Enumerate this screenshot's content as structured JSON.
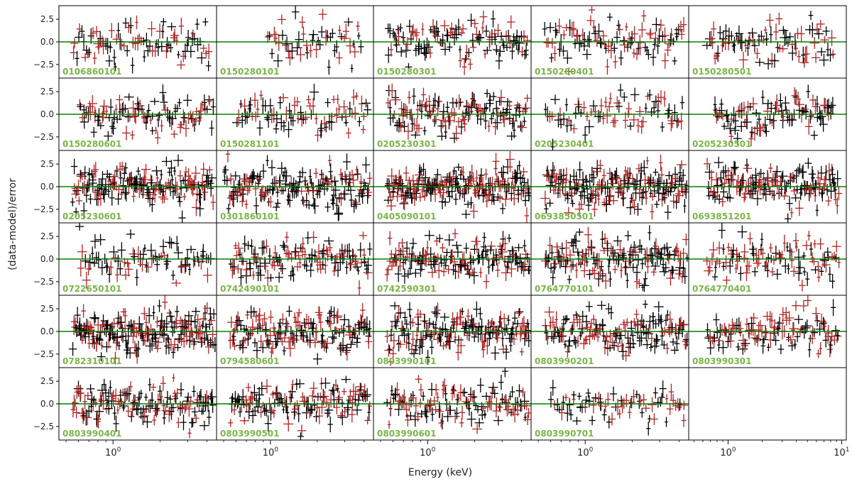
{
  "chart_data": {
    "type": "scatter",
    "layout": "grid of residual panels, 6 rows x 5 columns",
    "xlabel": "Energy (keV)",
    "ylabel": "(data-model)/error",
    "xscale": "log",
    "ylim": [
      -4,
      4
    ],
    "yticks": [
      2.5,
      0.0,
      -2.5
    ],
    "ytick_labels": [
      "2.5",
      "0.0",
      "−2.5"
    ],
    "xtick_labels": [
      {
        "base": "10",
        "exp": "0",
        "value": 1
      },
      {
        "base": "10",
        "exp": "1",
        "value": 10
      }
    ],
    "reference_line": {
      "y": 0,
      "color": "#008000"
    },
    "series_styles": [
      {
        "name": "instrument-1",
        "color": "#000000"
      },
      {
        "name": "instrument-2",
        "color": "#b22222"
      }
    ],
    "label_color": "#7ab648",
    "panels": [
      {
        "obs_id": "0106860101",
        "xlim": [
          0.45,
          4.6
        ],
        "xrange": [
          0.55,
          4.2
        ],
        "n": 85
      },
      {
        "obs_id": "0150280101",
        "xlim": [
          0.45,
          4.6
        ],
        "xrange": [
          0.95,
          3.9
        ],
        "n": 50
      },
      {
        "obs_id": "0150280301",
        "xlim": [
          0.45,
          4.6
        ],
        "xrange": [
          0.55,
          4.4
        ],
        "n": 110
      },
      {
        "obs_id": "0150280401",
        "xlim": [
          0.45,
          4.6
        ],
        "xrange": [
          0.55,
          4.3
        ],
        "n": 95
      },
      {
        "obs_id": "0150280501",
        "xlim": [
          0.45,
          11
        ],
        "xrange": [
          0.65,
          8.5
        ],
        "n": 80
      },
      {
        "obs_id": "0150280601",
        "xlim": [
          0.45,
          4.6
        ],
        "xrange": [
          0.6,
          4.4
        ],
        "n": 95
      },
      {
        "obs_id": "0150281101",
        "xlim": [
          0.45,
          4.6
        ],
        "xrange": [
          0.6,
          4.3
        ],
        "n": 75
      },
      {
        "obs_id": "0205230301",
        "xlim": [
          0.45,
          4.6
        ],
        "xrange": [
          0.55,
          4.4
        ],
        "n": 130
      },
      {
        "obs_id": "0205230401",
        "xlim": [
          0.45,
          4.6
        ],
        "xrange": [
          0.55,
          4.3
        ],
        "n": 70
      },
      {
        "obs_id": "0205230501",
        "xlim": [
          0.45,
          11
        ],
        "xrange": [
          0.75,
          8.5
        ],
        "n": 95
      },
      {
        "obs_id": "0205230601",
        "xlim": [
          0.45,
          4.6
        ],
        "xrange": [
          0.55,
          4.4
        ],
        "n": 160
      },
      {
        "obs_id": "0301860101",
        "xlim": [
          0.45,
          4.6
        ],
        "xrange": [
          0.5,
          4.4
        ],
        "n": 160
      },
      {
        "obs_id": "0405090101",
        "xlim": [
          0.45,
          4.6
        ],
        "xrange": [
          0.55,
          4.5
        ],
        "n": 190
      },
      {
        "obs_id": "0693850501",
        "xlim": [
          0.45,
          4.6
        ],
        "xrange": [
          0.55,
          4.5
        ],
        "n": 180
      },
      {
        "obs_id": "0693851201",
        "xlim": [
          0.45,
          11
        ],
        "xrange": [
          0.65,
          9.5
        ],
        "n": 150
      },
      {
        "obs_id": "0722650101",
        "xlim": [
          0.45,
          4.6
        ],
        "xrange": [
          0.6,
          4.3
        ],
        "n": 75
      },
      {
        "obs_id": "0742490101",
        "xlim": [
          0.45,
          4.6
        ],
        "xrange": [
          0.55,
          4.4
        ],
        "n": 120
      },
      {
        "obs_id": "0742590301",
        "xlim": [
          0.45,
          4.6
        ],
        "xrange": [
          0.55,
          4.5
        ],
        "n": 150
      },
      {
        "obs_id": "0764770101",
        "xlim": [
          0.45,
          4.6
        ],
        "xrange": [
          0.55,
          4.5
        ],
        "n": 150
      },
      {
        "obs_id": "0764770401",
        "xlim": [
          0.45,
          11
        ],
        "xrange": [
          0.65,
          9.5
        ],
        "n": 95
      },
      {
        "obs_id": "0782310101",
        "xlim": [
          0.45,
          4.6
        ],
        "xrange": [
          0.55,
          4.5
        ],
        "n": 190
      },
      {
        "obs_id": "0794580601",
        "xlim": [
          0.45,
          4.6
        ],
        "xrange": [
          0.55,
          4.4
        ],
        "n": 150
      },
      {
        "obs_id": "0803990101",
        "xlim": [
          0.45,
          4.6
        ],
        "xrange": [
          0.55,
          4.5
        ],
        "n": 160
      },
      {
        "obs_id": "0803990201",
        "xlim": [
          0.45,
          4.6
        ],
        "xrange": [
          0.55,
          4.5
        ],
        "n": 150
      },
      {
        "obs_id": "0803990301",
        "xlim": [
          0.45,
          11
        ],
        "xrange": [
          0.65,
          9.5
        ],
        "n": 110
      },
      {
        "obs_id": "0803990401",
        "xlim": [
          0.45,
          4.6
        ],
        "xrange": [
          0.55,
          4.4
        ],
        "n": 140
      },
      {
        "obs_id": "0803990501",
        "xlim": [
          0.45,
          4.6
        ],
        "xrange": [
          0.55,
          4.4
        ],
        "n": 130
      },
      {
        "obs_id": "0803990601",
        "xlim": [
          0.45,
          4.6
        ],
        "xrange": [
          0.55,
          4.5
        ],
        "n": 120
      },
      {
        "obs_id": "0803990701",
        "xlim": [
          0.45,
          4.6
        ],
        "xrange": [
          0.6,
          4.4
        ],
        "n": 70
      }
    ]
  }
}
